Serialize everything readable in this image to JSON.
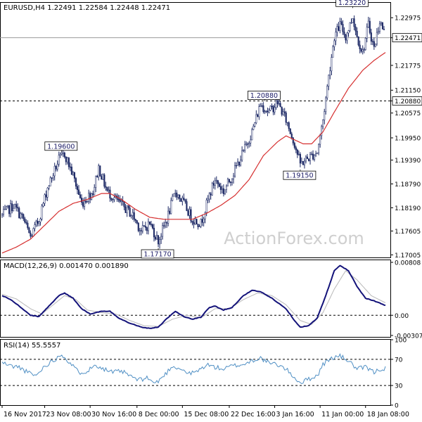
{
  "chart_data": [
    {
      "type": "candlestick",
      "panel": "price",
      "header": "EURUSD,H4  1.22491 1.22584 1.22448 1.22471",
      "y_ticks": [
        "1.22975",
        "1.22471",
        "1.21775",
        "1.21150",
        "1.20880",
        "1.20575",
        "1.19950",
        "1.19390",
        "1.18790",
        "1.18190",
        "1.17605",
        "1.17005"
      ],
      "y_tick_values": [
        1.22975,
        1.22471,
        1.21775,
        1.2115,
        1.2088,
        1.20575,
        1.1995,
        1.1939,
        1.1879,
        1.1819,
        1.17605,
        1.17005
      ],
      "ylim": [
        1.1694,
        1.2335
      ],
      "current_price": {
        "label": "1.22471",
        "value": 1.22471
      },
      "support_level": {
        "label": "1.20880",
        "value": 1.2088
      },
      "annotations": [
        {
          "label": "1.23220",
          "bar": 247,
          "value": 1.2322
        },
        {
          "label": "1.20880",
          "bar": 185,
          "value": 1.2088
        },
        {
          "label": "1.19600",
          "bar": 42,
          "value": 1.196
        },
        {
          "label": "1.19150",
          "bar": 210,
          "value": 1.1915
        },
        {
          "label": "1.17170",
          "bar": 110,
          "value": 1.1717
        }
      ],
      "price_path": [
        [
          0,
          1.18
        ],
        [
          8,
          1.1825
        ],
        [
          15,
          1.179
        ],
        [
          20,
          1.1745
        ],
        [
          26,
          1.179
        ],
        [
          32,
          1.187
        ],
        [
          40,
          1.194
        ],
        [
          44,
          1.1955
        ],
        [
          50,
          1.19
        ],
        [
          56,
          1.183
        ],
        [
          64,
          1.186
        ],
        [
          68,
          1.192
        ],
        [
          74,
          1.186
        ],
        [
          80,
          1.184
        ],
        [
          86,
          1.182
        ],
        [
          92,
          1.18
        ],
        [
          98,
          1.176
        ],
        [
          104,
          1.178
        ],
        [
          110,
          1.1735
        ],
        [
          116,
          1.179
        ],
        [
          122,
          1.186
        ],
        [
          128,
          1.183
        ],
        [
          134,
          1.179
        ],
        [
          140,
          1.178
        ],
        [
          146,
          1.185
        ],
        [
          150,
          1.189
        ],
        [
          156,
          1.186
        ],
        [
          162,
          1.19
        ],
        [
          170,
          1.196
        ],
        [
          176,
          1.201
        ],
        [
          182,
          1.208
        ],
        [
          188,
          1.206
        ],
        [
          194,
          1.2085
        ],
        [
          200,
          1.204
        ],
        [
          206,
          1.198
        ],
        [
          210,
          1.193
        ],
        [
          216,
          1.1945
        ],
        [
          222,
          1.196
        ],
        [
          226,
          1.204
        ],
        [
          230,
          1.215
        ],
        [
          234,
          1.225
        ],
        [
          238,
          1.228
        ],
        [
          242,
          1.225
        ],
        [
          247,
          1.23
        ],
        [
          250,
          1.225
        ],
        [
          254,
          1.221
        ],
        [
          258,
          1.228
        ],
        [
          262,
          1.222
        ],
        [
          266,
          1.229
        ],
        [
          270,
          1.225
        ]
      ],
      "ma_path": [
        [
          0,
          1.1705
        ],
        [
          10,
          1.172
        ],
        [
          20,
          1.174
        ],
        [
          30,
          1.1775
        ],
        [
          40,
          1.181
        ],
        [
          50,
          1.183
        ],
        [
          60,
          1.184
        ],
        [
          70,
          1.1855
        ],
        [
          76,
          1.1855
        ],
        [
          84,
          1.184
        ],
        [
          94,
          1.1815
        ],
        [
          104,
          1.1795
        ],
        [
          114,
          1.179
        ],
        [
          124,
          1.179
        ],
        [
          134,
          1.179
        ],
        [
          144,
          1.1805
        ],
        [
          154,
          1.1825
        ],
        [
          164,
          1.185
        ],
        [
          174,
          1.189
        ],
        [
          184,
          1.195
        ],
        [
          194,
          1.1985
        ],
        [
          200,
          1.2
        ],
        [
          206,
          1.199
        ],
        [
          212,
          1.198
        ],
        [
          218,
          1.198
        ],
        [
          226,
          1.201
        ],
        [
          234,
          1.206
        ],
        [
          244,
          1.212
        ],
        [
          254,
          1.2165
        ],
        [
          262,
          1.219
        ],
        [
          270,
          1.221
        ]
      ]
    },
    {
      "type": "line",
      "panel": "macd",
      "header": "MACD(12,26,9) 0.001470 0.001890",
      "y_ticks": [
        "0.00808",
        "0.00",
        "-0.003078"
      ],
      "y_tick_values": [
        0.00808,
        0.0,
        -0.003078
      ],
      "ylim": [
        -0.0033,
        0.0084
      ],
      "series": [
        {
          "values": [
            [
              0,
              0.003
            ],
            [
              6,
              0.0024
            ],
            [
              12,
              0.0014
            ],
            [
              20,
              0.0
            ],
            [
              26,
              -0.0002
            ],
            [
              32,
              0.0012
            ],
            [
              40,
              0.003
            ],
            [
              44,
              0.0034
            ],
            [
              50,
              0.0026
            ],
            [
              56,
              0.001
            ],
            [
              62,
              0.0002
            ],
            [
              70,
              0.0006
            ],
            [
              76,
              0.0006
            ],
            [
              82,
              -0.0004
            ],
            [
              90,
              -0.0012
            ],
            [
              98,
              -0.0018
            ],
            [
              104,
              -0.002
            ],
            [
              110,
              -0.0018
            ],
            [
              116,
              -0.0005
            ],
            [
              122,
              0.0006
            ],
            [
              128,
              -0.0002
            ],
            [
              134,
              -0.0006
            ],
            [
              140,
              -0.0003
            ],
            [
              146,
              0.0012
            ],
            [
              150,
              0.0014
            ],
            [
              156,
              0.0008
            ],
            [
              162,
              0.0012
            ],
            [
              170,
              0.003
            ],
            [
              176,
              0.0038
            ],
            [
              182,
              0.0036
            ],
            [
              190,
              0.0026
            ],
            [
              200,
              0.001
            ],
            [
              206,
              -0.0008
            ],
            [
              210,
              -0.0018
            ],
            [
              216,
              -0.0016
            ],
            [
              222,
              -0.0004
            ],
            [
              228,
              0.003
            ],
            [
              234,
              0.0068
            ],
            [
              238,
              0.0076
            ],
            [
              244,
              0.0068
            ],
            [
              250,
              0.0044
            ],
            [
              256,
              0.0026
            ],
            [
              262,
              0.0022
            ],
            [
              270,
              0.0015
            ]
          ]
        },
        {
          "values": [
            [
              0,
              0.0032
            ],
            [
              10,
              0.0025
            ],
            [
              20,
              0.001
            ],
            [
              28,
              0.0002
            ],
            [
              36,
              0.0016
            ],
            [
              44,
              0.003
            ],
            [
              52,
              0.0024
            ],
            [
              60,
              0.0008
            ],
            [
              70,
              0.0004
            ],
            [
              80,
              0.0002
            ],
            [
              90,
              -0.0008
            ],
            [
              100,
              -0.0016
            ],
            [
              110,
              -0.0017
            ],
            [
              120,
              -0.0006
            ],
            [
              130,
              0.0
            ],
            [
              140,
              -0.0004
            ],
            [
              150,
              0.001
            ],
            [
              160,
              0.001
            ],
            [
              170,
              0.0024
            ],
            [
              180,
              0.0034
            ],
            [
              190,
              0.003
            ],
            [
              200,
              0.0016
            ],
            [
              210,
              -0.0008
            ],
            [
              218,
              -0.0014
            ],
            [
              226,
              0.0004
            ],
            [
              234,
              0.004
            ],
            [
              242,
              0.0068
            ],
            [
              250,
              0.0054
            ],
            [
              260,
              0.003
            ],
            [
              270,
              0.0019
            ]
          ]
        }
      ]
    },
    {
      "type": "line",
      "panel": "rsi",
      "header": "RSI(14) 55.5557",
      "y_ticks": [
        "100",
        "70",
        "30",
        "0"
      ],
      "y_tick_values": [
        100,
        70,
        30,
        0
      ],
      "ylim": [
        0,
        100
      ],
      "levels": [
        70,
        30
      ],
      "series": [
        {
          "values": [
            [
              0,
              65
            ],
            [
              6,
              60
            ],
            [
              12,
              58
            ],
            [
              18,
              50
            ],
            [
              24,
              45
            ],
            [
              30,
              60
            ],
            [
              36,
              68
            ],
            [
              42,
              78
            ],
            [
              48,
              64
            ],
            [
              54,
              50
            ],
            [
              60,
              52
            ],
            [
              66,
              62
            ],
            [
              72,
              55
            ],
            [
              78,
              50
            ],
            [
              84,
              52
            ],
            [
              90,
              45
            ],
            [
              96,
              38
            ],
            [
              102,
              42
            ],
            [
              108,
              33
            ],
            [
              114,
              45
            ],
            [
              120,
              60
            ],
            [
              126,
              55
            ],
            [
              132,
              48
            ],
            [
              138,
              52
            ],
            [
              144,
              62
            ],
            [
              150,
              58
            ],
            [
              156,
              55
            ],
            [
              162,
              60
            ],
            [
              170,
              62
            ],
            [
              176,
              68
            ],
            [
              182,
              72
            ],
            [
              188,
              64
            ],
            [
              194,
              62
            ],
            [
              200,
              55
            ],
            [
              206,
              42
            ],
            [
              210,
              34
            ],
            [
              216,
              40
            ],
            [
              222,
              45
            ],
            [
              226,
              62
            ],
            [
              232,
              72
            ],
            [
              238,
              75
            ],
            [
              244,
              68
            ],
            [
              250,
              55
            ],
            [
              256,
              58
            ],
            [
              262,
              50
            ],
            [
              266,
              55
            ],
            [
              270,
              56
            ]
          ]
        }
      ]
    }
  ],
  "x_axis": {
    "bar_count": 270,
    "labels": [
      {
        "bar": 0,
        "text": "16 Nov 2017"
      },
      {
        "bar": 30,
        "text": "23 Nov 08:00"
      },
      {
        "bar": 62,
        "text": "30 Nov 16:00"
      },
      {
        "bar": 95,
        "text": "8 Dec 00:00"
      },
      {
        "bar": 127,
        "text": "15 Dec 08:00"
      },
      {
        "bar": 160,
        "text": "22 Dec 16:00"
      },
      {
        "bar": 192,
        "text": "3 Jan 16:00"
      },
      {
        "bar": 224,
        "text": "11 Jan 00:00"
      },
      {
        "bar": 256,
        "text": "18 Jan 08:00"
      }
    ]
  },
  "watermark": "ActionForex.com",
  "colors": {
    "background": "#ffffff",
    "candles": "#1e2a66",
    "macd": "#14137a",
    "signal": "#b8b8b8",
    "ma": "#d63030",
    "rsi": "#4f8fc4",
    "frame": "#000000",
    "label_bg": "#ffffff"
  }
}
